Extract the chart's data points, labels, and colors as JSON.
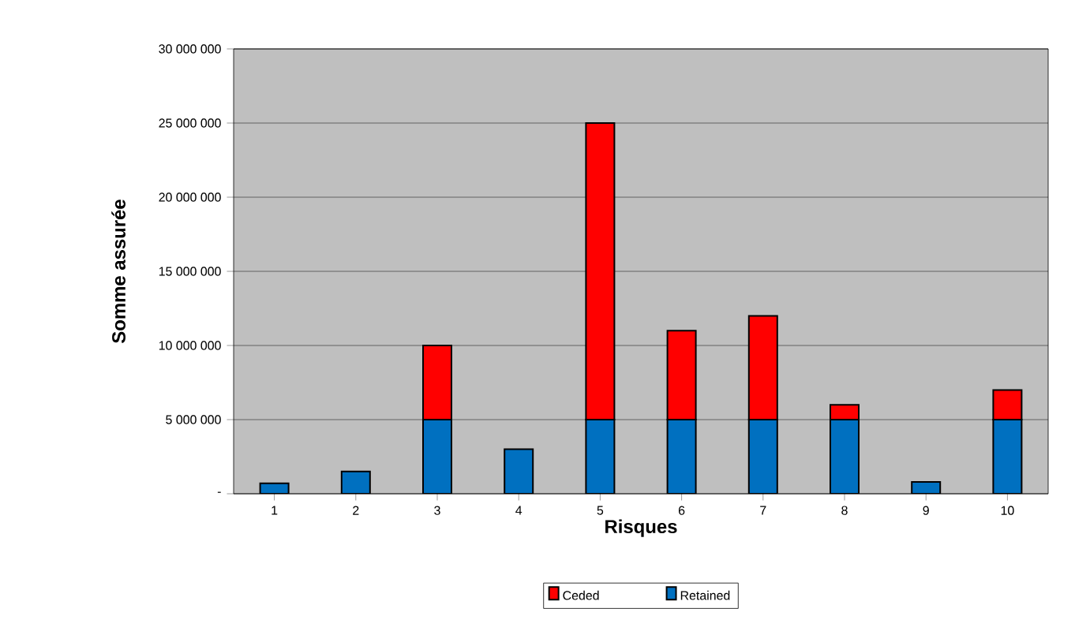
{
  "chart_data": {
    "type": "bar",
    "stacked": true,
    "xlabel": "Risques",
    "ylabel": "Somme assurée",
    "categories": [
      "1",
      "2",
      "3",
      "4",
      "5",
      "6",
      "7",
      "8",
      "9",
      "10"
    ],
    "series": [
      {
        "name": "Retained",
        "color": "#0070c0",
        "values": [
          700000,
          1500000,
          5000000,
          3000000,
          5000000,
          5000000,
          5000000,
          5000000,
          800000,
          5000000
        ]
      },
      {
        "name": "Ceded",
        "color": "#ff0000",
        "values": [
          0,
          0,
          5000000,
          0,
          20000000,
          6000000,
          7000000,
          1000000,
          0,
          2000000
        ]
      }
    ],
    "ylim": [
      0,
      30000000
    ],
    "yticks": [
      {
        "value": 0,
        "label": "-"
      },
      {
        "value": 5000000,
        "label": "5 000 000"
      },
      {
        "value": 10000000,
        "label": "10 000 000"
      },
      {
        "value": 15000000,
        "label": "15 000 000"
      },
      {
        "value": 20000000,
        "label": "20 000 000"
      },
      {
        "value": 25000000,
        "label": "25 000 000"
      },
      {
        "value": 30000000,
        "label": "30 000 000"
      }
    ],
    "grid": "y",
    "legend": "bottom"
  }
}
